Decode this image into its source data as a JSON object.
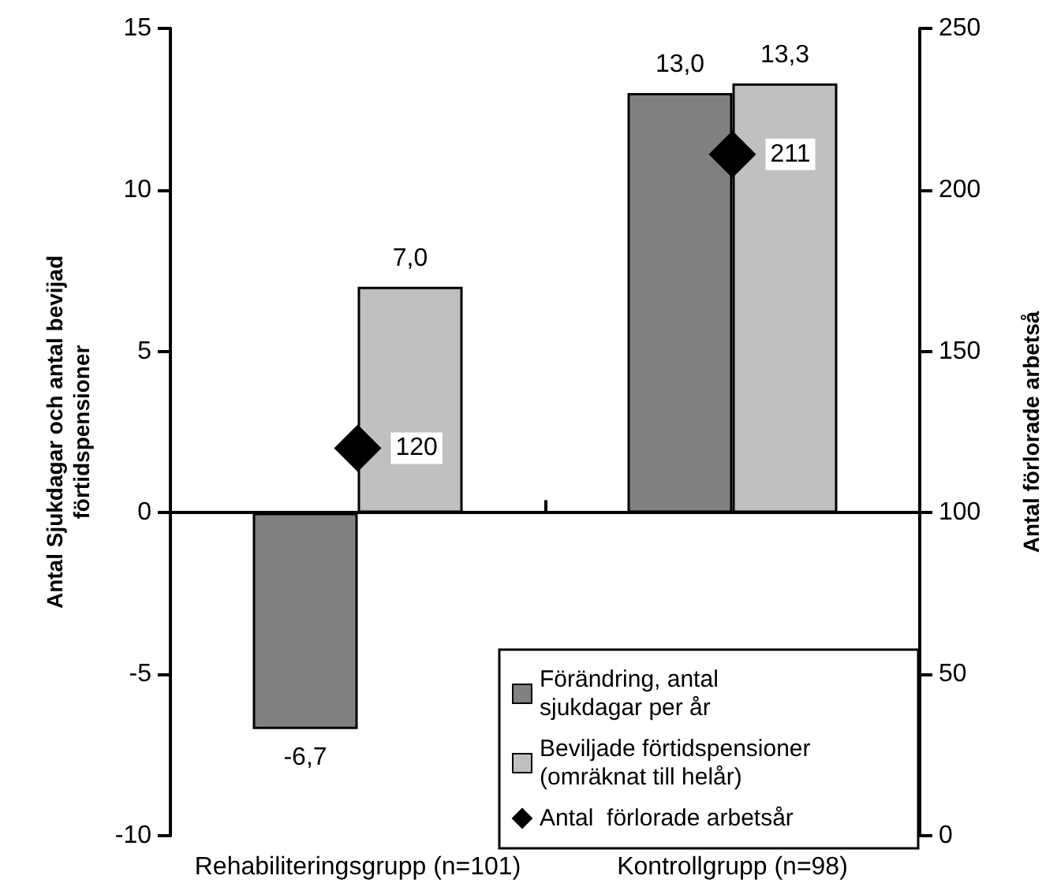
{
  "chart_data": {
    "type": "bar",
    "categories": [
      "Rehabiliteringsgrupp (n=101)",
      "Kontrollgrupp (n=98)"
    ],
    "ylabel": "Antal Sjukdagar och antal bevijad förtidspensioner",
    "y2label": "Antal förlorade arbetså",
    "series": [
      {
        "name": "Förändring, antal sjukdagar per år",
        "color": "#808080",
        "values": [
          -6.7,
          13.0
        ],
        "value_labels": [
          "-6,7",
          "13,0"
        ]
      },
      {
        "name": "Beviljade förtidspensioner (omräknat till helår)",
        "color": "#c0c0c0",
        "values": [
          7.0,
          13.3
        ],
        "value_labels": [
          "7,0",
          "13,3"
        ]
      },
      {
        "name": "Antal  förlorade arbetsår",
        "type": "scatter",
        "axis": "y2",
        "color": "#000000",
        "marker": "diamond",
        "x": [
          "Rehabiliteringsgrupp (n=101)",
          "Kontrollgrupp (n=98)"
        ],
        "values": [
          120,
          211
        ],
        "value_labels": [
          "120",
          "211"
        ]
      }
    ],
    "ylim": [
      -10,
      15
    ],
    "yticks": [
      -10,
      -5,
      0,
      5,
      10,
      15
    ],
    "y2lim": [
      0,
      250
    ],
    "y2ticks": [
      0,
      50,
      100,
      150,
      200,
      250
    ],
    "legend": "bottom right"
  }
}
